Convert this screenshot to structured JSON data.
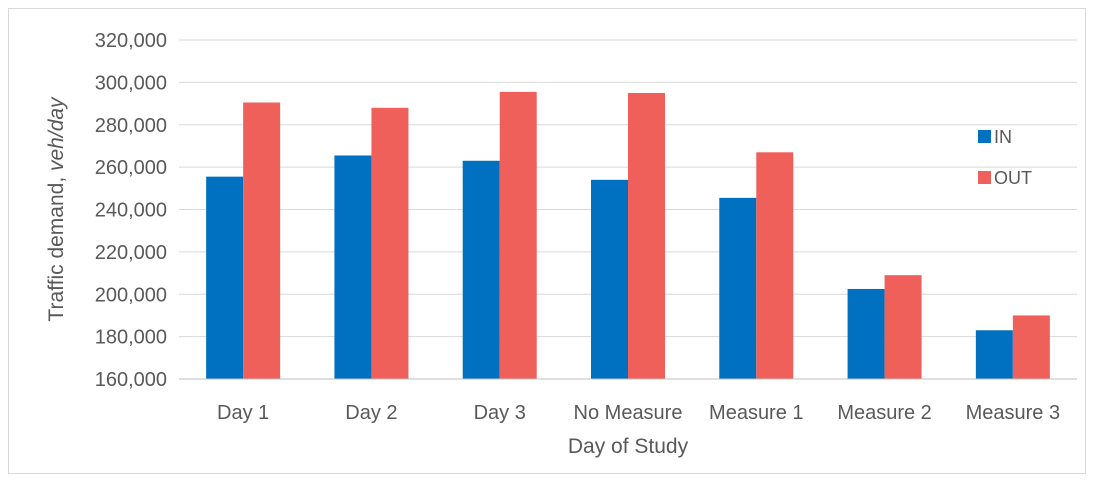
{
  "chart_data": {
    "type": "bar",
    "title": "",
    "xlabel": "Day of Study",
    "ylabel_main": "Traffic demand, ",
    "ylabel_unit": "veh/day",
    "ylim": [
      160000,
      320000
    ],
    "y_ticks": [
      160000,
      180000,
      200000,
      220000,
      240000,
      260000,
      280000,
      300000,
      320000
    ],
    "y_tick_labels": [
      "160,000",
      "180,000",
      "200,000",
      "220,000",
      "240,000",
      "260,000",
      "280,000",
      "300,000",
      "320,000"
    ],
    "grid": true,
    "legend_position": "right",
    "categories": [
      "Day 1",
      "Day 2",
      "Day 3",
      "No Measure",
      "Measure 1",
      "Measure 2",
      "Measure 3"
    ],
    "series": [
      {
        "name": "IN",
        "color": "#0070c0",
        "values": [
          255500,
          265500,
          263000,
          254000,
          245500,
          202500,
          183000
        ]
      },
      {
        "name": "OUT",
        "color": "#f0605a",
        "values": [
          290500,
          288000,
          295500,
          295000,
          267000,
          209000,
          190000
        ]
      }
    ]
  }
}
